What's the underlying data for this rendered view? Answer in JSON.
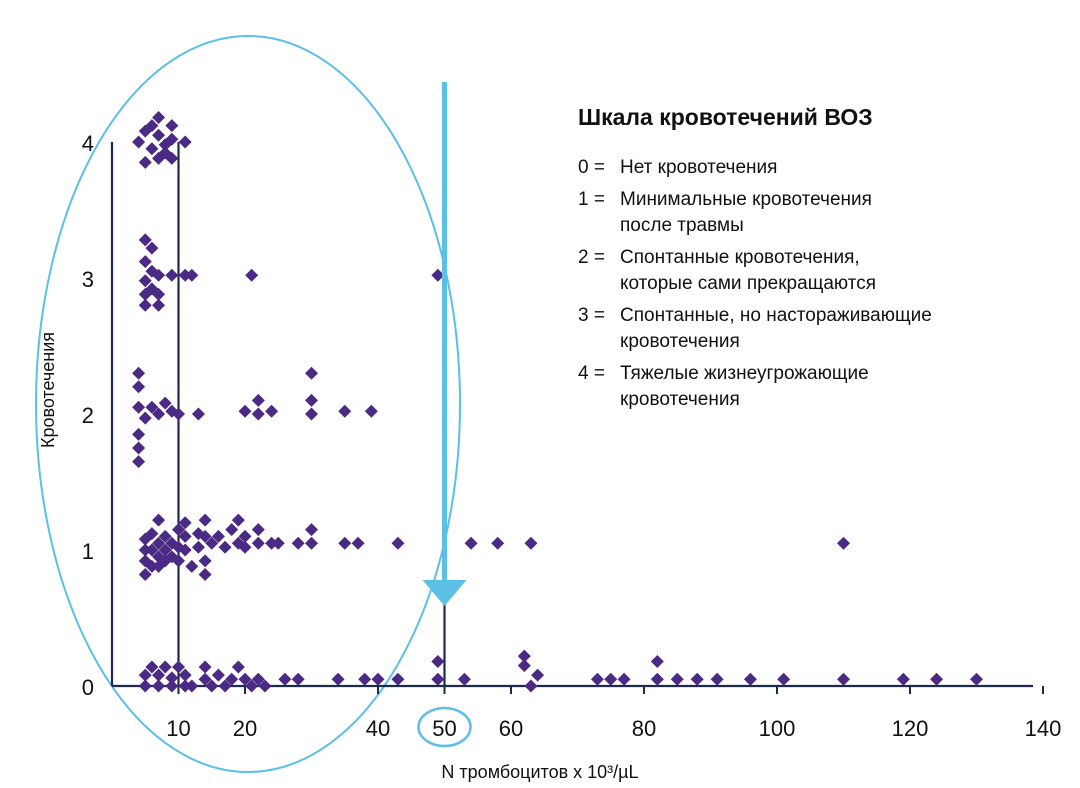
{
  "chart_data": {
    "type": "scatter",
    "title": "",
    "xlabel": "N тромбоцитов x 10³/µL",
    "ylabel": "Кровотечения",
    "xlim": [
      -5,
      150
    ],
    "ylim": [
      0,
      4
    ],
    "x_ticks": [
      10,
      20,
      40,
      50,
      60,
      80,
      100,
      120,
      140
    ],
    "y_ticks": [
      0,
      1,
      2,
      3,
      4
    ],
    "reference_lines_x": [
      0,
      10,
      50
    ],
    "highlight_tick": 50,
    "colors": {
      "points": "#4b2a85",
      "axis": "#1e2a4a",
      "accent": "#5bbfe6"
    },
    "series": [
      {
        "points": [
          [
            5,
            4.08
          ],
          [
            7,
            4.05
          ],
          [
            8,
            3.98
          ],
          [
            4,
            4.0
          ],
          [
            6,
            3.95
          ],
          [
            7,
            3.88
          ],
          [
            8,
            3.92
          ],
          [
            6,
            4.12
          ],
          [
            7,
            4.18
          ],
          [
            9,
            4.12
          ],
          [
            9,
            4.02
          ],
          [
            5,
            3.85
          ],
          [
            9,
            3.88
          ],
          [
            11,
            4.0
          ],
          [
            5,
            3.28
          ],
          [
            6,
            3.22
          ],
          [
            5,
            3.12
          ],
          [
            6,
            3.05
          ],
          [
            5,
            2.98
          ],
          [
            7,
            3.02
          ],
          [
            5,
            2.88
          ],
          [
            6,
            2.92
          ],
          [
            7,
            2.88
          ],
          [
            5,
            2.8
          ],
          [
            7,
            2.8
          ],
          [
            9,
            3.02
          ],
          [
            11,
            3.02
          ],
          [
            12,
            3.02
          ],
          [
            21,
            3.02
          ],
          [
            49,
            3.02
          ],
          [
            4,
            2.3
          ],
          [
            4,
            2.2
          ],
          [
            4,
            2.05
          ],
          [
            5,
            1.97
          ],
          [
            6,
            2.05
          ],
          [
            7,
            2.0
          ],
          [
            8,
            2.08
          ],
          [
            9,
            2.02
          ],
          [
            10,
            2.0
          ],
          [
            13,
            2.0
          ],
          [
            4,
            1.85
          ],
          [
            4,
            1.75
          ],
          [
            4,
            1.65
          ],
          [
            20,
            2.02
          ],
          [
            22,
            2.1
          ],
          [
            22,
            2.0
          ],
          [
            24,
            2.02
          ],
          [
            30,
            2.3
          ],
          [
            30,
            2.1
          ],
          [
            30,
            2.0
          ],
          [
            35,
            2.02
          ],
          [
            39,
            2.02
          ],
          [
            5,
            1.08
          ],
          [
            5,
            1.0
          ],
          [
            5,
            0.92
          ],
          [
            5,
            0.82
          ],
          [
            6,
            1.12
          ],
          [
            7,
            1.22
          ],
          [
            6,
            1.0
          ],
          [
            7,
            1.05
          ],
          [
            7,
            0.95
          ],
          [
            6,
            0.88
          ],
          [
            7,
            0.88
          ],
          [
            8,
            1.1
          ],
          [
            8,
            1.0
          ],
          [
            8,
            0.92
          ],
          [
            9,
            1.05
          ],
          [
            9,
            0.95
          ],
          [
            10,
            1.15
          ],
          [
            10,
            1.02
          ],
          [
            10,
            0.92
          ],
          [
            11,
            1.2
          ],
          [
            11,
            1.1
          ],
          [
            11,
            1.0
          ],
          [
            12,
            0.88
          ],
          [
            13,
            1.12
          ],
          [
            13,
            1.02
          ],
          [
            14,
            1.22
          ],
          [
            14,
            1.1
          ],
          [
            14,
            0.92
          ],
          [
            14,
            0.82
          ],
          [
            15,
            1.05
          ],
          [
            16,
            1.1
          ],
          [
            17,
            1.02
          ],
          [
            18,
            1.15
          ],
          [
            19,
            1.22
          ],
          [
            19,
            1.05
          ],
          [
            20,
            1.1
          ],
          [
            20,
            1.02
          ],
          [
            22,
            1.15
          ],
          [
            22,
            1.05
          ],
          [
            24,
            1.05
          ],
          [
            25,
            1.05
          ],
          [
            28,
            1.05
          ],
          [
            30,
            1.15
          ],
          [
            30,
            1.05
          ],
          [
            35,
            1.05
          ],
          [
            37,
            1.05
          ],
          [
            43,
            1.05
          ],
          [
            54,
            1.05
          ],
          [
            58,
            1.05
          ],
          [
            63,
            1.05
          ],
          [
            110,
            1.05
          ],
          [
            5,
            0.08
          ],
          [
            5,
            0.0
          ],
          [
            6,
            0.14
          ],
          [
            7,
            0.08
          ],
          [
            7,
            0.0
          ],
          [
            8,
            0.14
          ],
          [
            9,
            0.06
          ],
          [
            9,
            0.0
          ],
          [
            10,
            0.14
          ],
          [
            11,
            0.08
          ],
          [
            11,
            0.0
          ],
          [
            12,
            0.0
          ],
          [
            14,
            0.14
          ],
          [
            14,
            0.05
          ],
          [
            15,
            0.0
          ],
          [
            16,
            0.08
          ],
          [
            17,
            0.0
          ],
          [
            18,
            0.05
          ],
          [
            19,
            0.14
          ],
          [
            20,
            0.05
          ],
          [
            21,
            0.0
          ],
          [
            22,
            0.05
          ],
          [
            23,
            0.0
          ],
          [
            26,
            0.05
          ],
          [
            28,
            0.05
          ],
          [
            34,
            0.05
          ],
          [
            38,
            0.05
          ],
          [
            40,
            0.05
          ],
          [
            43,
            0.05
          ],
          [
            49,
            0.05
          ],
          [
            49,
            0.18
          ],
          [
            53,
            0.05
          ],
          [
            62,
            0.22
          ],
          [
            62,
            0.15
          ],
          [
            64,
            0.08
          ],
          [
            63,
            0.0
          ],
          [
            73,
            0.05
          ],
          [
            75,
            0.05
          ],
          [
            77,
            0.05
          ],
          [
            82,
            0.18
          ],
          [
            82,
            0.05
          ],
          [
            85,
            0.05
          ],
          [
            88,
            0.05
          ],
          [
            91,
            0.05
          ],
          [
            96,
            0.05
          ],
          [
            101,
            0.05
          ],
          [
            110,
            0.05
          ],
          [
            119,
            0.05
          ],
          [
            124,
            0.05
          ],
          [
            130,
            0.05
          ]
        ]
      }
    ]
  },
  "legend": {
    "title": "Шкала кровотечений ВОЗ",
    "items": [
      {
        "code": "0 =",
        "text": "Нет кровотечения"
      },
      {
        "code": "1 =",
        "text": "Минимальные кровотечения\nпосле травмы"
      },
      {
        "code": "2 =",
        "text": "Спонтанные кровотечения,\nкоторые сами прекращаются"
      },
      {
        "code": "3 =",
        "text": "Спонтанные, но настораживающие\nкровотечения"
      },
      {
        "code": "4 =",
        "text": "Тяжелые жизнеугрожающие\nкровотечения"
      }
    ]
  }
}
